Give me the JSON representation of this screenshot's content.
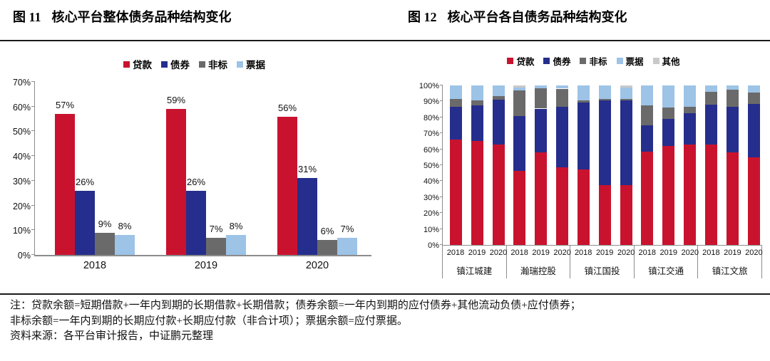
{
  "figures": {
    "left": {
      "label": "图 11",
      "title": "核心平台整体债务品种结构变化"
    },
    "right": {
      "label": "图 12",
      "title": "核心平台各自债务品种结构变化"
    }
  },
  "colors": {
    "loan": "#C9132E",
    "bond": "#252E8C",
    "nonstd": "#6A6A6A",
    "bill": "#9DC3E6",
    "other": "#C9C9C9",
    "axis": "#8C8C8C"
  },
  "chart_data": [
    {
      "type": "bar",
      "title": "核心平台整体债务品种结构变化",
      "categories": [
        "2018",
        "2019",
        "2020"
      ],
      "series": [
        {
          "name": "贷款",
          "color_key": "loan",
          "values": [
            57,
            59,
            56
          ]
        },
        {
          "name": "债券",
          "color_key": "bond",
          "values": [
            26,
            26,
            31
          ]
        },
        {
          "name": "非标",
          "color_key": "nonstd",
          "values": [
            9,
            7,
            6
          ]
        },
        {
          "name": "票据",
          "color_key": "bill",
          "values": [
            8,
            8,
            7
          ]
        }
      ],
      "ylim": [
        0,
        70
      ],
      "ytick_step": 10,
      "ytick_suffix": "%",
      "data_label_suffix": "%",
      "grid": false,
      "legend_position": "top"
    },
    {
      "type": "bar",
      "stacked": true,
      "stacked_total": 100,
      "title": "核心平台各自债务品种结构变化",
      "groups": [
        "镇江城建",
        "瀚瑞控股",
        "镇江国投",
        "镇江交通",
        "镇江文旅"
      ],
      "categories": [
        "2018",
        "2019",
        "2020"
      ],
      "series": [
        {
          "name": "贷款",
          "color_key": "loan",
          "values": [
            [
              66,
              65,
              63
            ],
            [
              46.5,
              58,
              48.5
            ],
            [
              47.5,
              37.5,
              37.5
            ],
            [
              58.5,
              62,
              63
            ],
            [
              63,
              58,
              55
            ]
          ]
        },
        {
          "name": "债券",
          "color_key": "bond",
          "values": [
            [
              20.5,
              22.5,
              28
            ],
            [
              34.5,
              27.5,
              38
            ],
            [
              42,
              53,
              53
            ],
            [
              16.5,
              17,
              19.5
            ],
            [
              25,
              28.5,
              33.5
            ]
          ]
        },
        {
          "name": "非标",
          "color_key": "nonstd",
          "values": [
            [
              5,
              3,
              2.5
            ],
            [
              16,
              12.5,
              11.5
            ],
            [
              1,
              1,
              1
            ],
            [
              12.5,
              7,
              4
            ],
            [
              8,
              11,
              7
            ]
          ]
        },
        {
          "name": "票据",
          "color_key": "bill",
          "values": [
            [
              8.5,
              9.5,
              6.5
            ],
            [
              1.5,
              2,
              2
            ],
            [
              9.5,
              8.5,
              7
            ],
            [
              12.5,
              14,
              13.5
            ],
            [
              4,
              2.5,
              4.5
            ]
          ]
        },
        {
          "name": "其他",
          "color_key": "other",
          "values": [
            [
              0,
              0,
              0
            ],
            [
              1.5,
              0,
              0
            ],
            [
              0,
              0,
              1.5
            ],
            [
              0,
              0,
              0
            ],
            [
              0,
              0,
              0
            ]
          ]
        }
      ],
      "ylim": [
        0,
        100
      ],
      "ytick_step": 10,
      "ytick_suffix": "%",
      "grid": false,
      "legend_position": "top"
    }
  ],
  "notes": {
    "line1": "注：贷款余额=短期借款+一年内到期的长期借款+长期借款；债券余额=一年内到期的应付债券+其他流动负债+应付债券；",
    "line2": "非标余额=一年内到期的长期应付款+长期应付款（非合计项）；票据余额=应付票据。",
    "line3": "资料来源：各平台审计报告，中证鹏元整理"
  }
}
